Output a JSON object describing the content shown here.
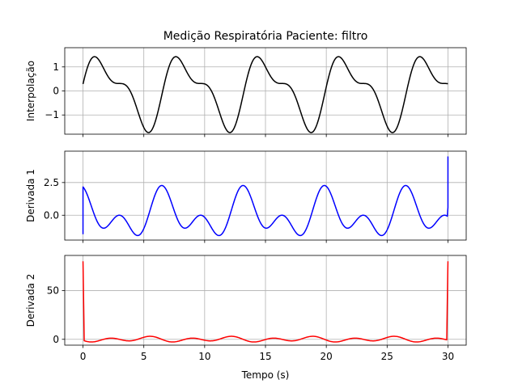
{
  "chart_data": {
    "type": "line",
    "title": "Medição Respiratória Paciente: filtro",
    "xlabel": "Tempo (s)",
    "xlim": [
      -1.5,
      31.5
    ],
    "x_ticks": [
      0,
      5,
      10,
      15,
      20,
      25,
      30
    ],
    "x_tick_labels": [
      "0",
      "5",
      "10",
      "15",
      "20",
      "25",
      "30"
    ],
    "grid": true,
    "x_step": 0.05,
    "panels": [
      {
        "ylabel": "Interpolação",
        "ylim": [
          -1.8,
          1.8
        ],
        "y_ticks": [
          -1,
          0,
          1
        ],
        "y_tick_labels": [
          "−1",
          "0",
          "1"
        ],
        "series": [
          {
            "color": "#000000",
            "formula": "y = 1.25·sin(0.94·t) + 0.6·sin(1.88·t + 0.5)",
            "x_range": [
              0,
              30
            ],
            "points": [
              [
                0,
                0.05
              ],
              [
                1.0,
                1.6
              ],
              [
                2.5,
                -0.2
              ],
              [
                3.5,
                0.2
              ],
              [
                5.6,
                -1.6
              ],
              [
                7.6,
                1.6
              ],
              [
                9.4,
                -0.2
              ],
              [
                10.4,
                0.2
              ],
              [
                12.3,
                -1.6
              ],
              [
                14.3,
                1.6
              ],
              [
                16.1,
                -0.2
              ],
              [
                17.1,
                0.2
              ],
              [
                19.0,
                -1.6
              ],
              [
                21.0,
                1.6
              ],
              [
                22.8,
                -0.2
              ],
              [
                23.8,
                0.2
              ],
              [
                25.7,
                -1.6
              ],
              [
                27.7,
                1.6
              ],
              [
                29.4,
                -0.2
              ],
              [
                30,
                0.05
              ]
            ]
          }
        ]
      },
      {
        "ylabel": "Derivada 1",
        "ylim": [
          -1.9,
          4.9
        ],
        "y_ticks": [
          0,
          2.5
        ],
        "y_tick_labels": [
          "0.0",
          "2.5"
        ],
        "series": [
          {
            "color": "#0000ff",
            "formula": "y = 0.94·1.25·cos(0.94·t) + 1.88·0.6·cos(1.88·t + 0.5)",
            "x_range": [
              0,
              29.95
            ],
            "start_point": [
              0,
              -1.45
            ],
            "end_points": [
              [
                30,
                0.6
              ],
              [
                30,
                4.5
              ]
            ],
            "points": [
              [
                0.1,
                2.45
              ],
              [
                1.8,
                -1.5
              ],
              [
                3.3,
                0.6
              ],
              [
                4.8,
                -1.5
              ],
              [
                6.6,
                2.45
              ],
              [
                8.5,
                -1.5
              ],
              [
                10.0,
                0.6
              ],
              [
                11.5,
                -1.5
              ],
              [
                13.3,
                2.45
              ],
              [
                15.2,
                -1.5
              ],
              [
                16.7,
                0.6
              ],
              [
                18.2,
                -1.5
              ],
              [
                20.0,
                2.45
              ],
              [
                21.9,
                -1.5
              ],
              [
                23.4,
                0.6
              ],
              [
                24.9,
                -1.5
              ],
              [
                26.7,
                2.45
              ],
              [
                28.6,
                -1.5
              ],
              [
                30,
                0.6
              ]
            ]
          }
        ]
      },
      {
        "ylabel": "Derivada 2",
        "ylim": [
          -6,
          86
        ],
        "y_ticks": [
          0,
          50
        ],
        "y_tick_labels": [
          "0",
          "50"
        ],
        "series": [
          {
            "color": "#ff0000",
            "formula": "y = −0.94²·1.25·sin(0.94·t) − 1.88²·0.6·sin(1.88·t + 0.5)",
            "x_range": [
              0.1,
              29.9
            ],
            "end_points": [
              [
                0,
                80
              ],
              [
                0.1,
                0
              ],
              [
                29.9,
                0
              ],
              [
                30,
                80
              ]
            ],
            "points": [
              [
                0,
                80
              ],
              [
                0.1,
                0
              ],
              [
                1.0,
                -2.5
              ],
              [
                2.5,
                2.8
              ],
              [
                3.5,
                0.5
              ],
              [
                5.6,
                3.6
              ],
              [
                7.6,
                -2.5
              ],
              [
                9.4,
                2.8
              ],
              [
                10.4,
                0.5
              ],
              [
                12.3,
                3.6
              ],
              [
                14.3,
                -2.5
              ],
              [
                16.1,
                2.8
              ],
              [
                17.1,
                0.5
              ],
              [
                19.0,
                3.6
              ],
              [
                21.0,
                -2.5
              ],
              [
                22.8,
                2.8
              ],
              [
                23.8,
                0.5
              ],
              [
                25.7,
                3.6
              ],
              [
                27.7,
                -2.5
              ],
              [
                29.9,
                0
              ],
              [
                30,
                80
              ]
            ]
          }
        ]
      }
    ]
  }
}
